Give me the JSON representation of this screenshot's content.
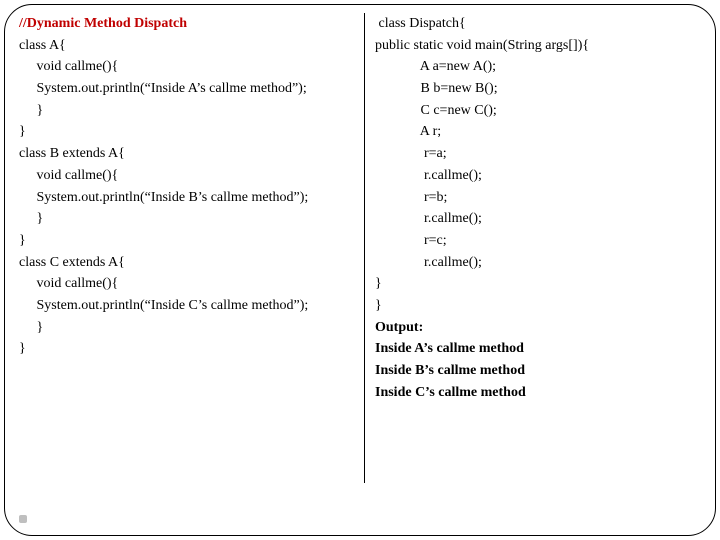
{
  "left": {
    "title": "//Dynamic Method Dispatch",
    "l01": "class A{",
    "l02": "     void callme(){",
    "l03": "     System.out.println(“Inside A’s callme method”);",
    "l04": "     }",
    "l05": "}",
    "l06": "class B extends A{",
    "l07": "     void callme(){",
    "l08": "     System.out.println(“Inside B’s callme method”);",
    "l09": "     }",
    "l10": "}",
    "l11": "class C extends A{",
    "l12": "     void callme(){",
    "l13": "     System.out.println(“Inside C’s callme method”);",
    "l14": "     }",
    "l15": "}"
  },
  "right": {
    "r01": " class Dispatch{",
    "r02": "public static void main(String args[]){",
    "r03": "             A a=new A();",
    "r04": "             B b=new B();",
    "r05": "             C c=new C();",
    "r06": "",
    "r07": "             A r;",
    "r08": "",
    "r09": "              r=a;",
    "r10": "              r.callme();",
    "r11": "",
    "r12": "              r=b;",
    "r13": "              r.callme();",
    "r14": "",
    "r15": "              r=c;",
    "r16": "              r.callme();",
    "r17": "}",
    "r18": "}",
    "out_label": "Output:",
    "out1": "Inside A’s callme method",
    "out2": "Inside B’s callme method",
    "out3": "Inside C’s callme method"
  }
}
